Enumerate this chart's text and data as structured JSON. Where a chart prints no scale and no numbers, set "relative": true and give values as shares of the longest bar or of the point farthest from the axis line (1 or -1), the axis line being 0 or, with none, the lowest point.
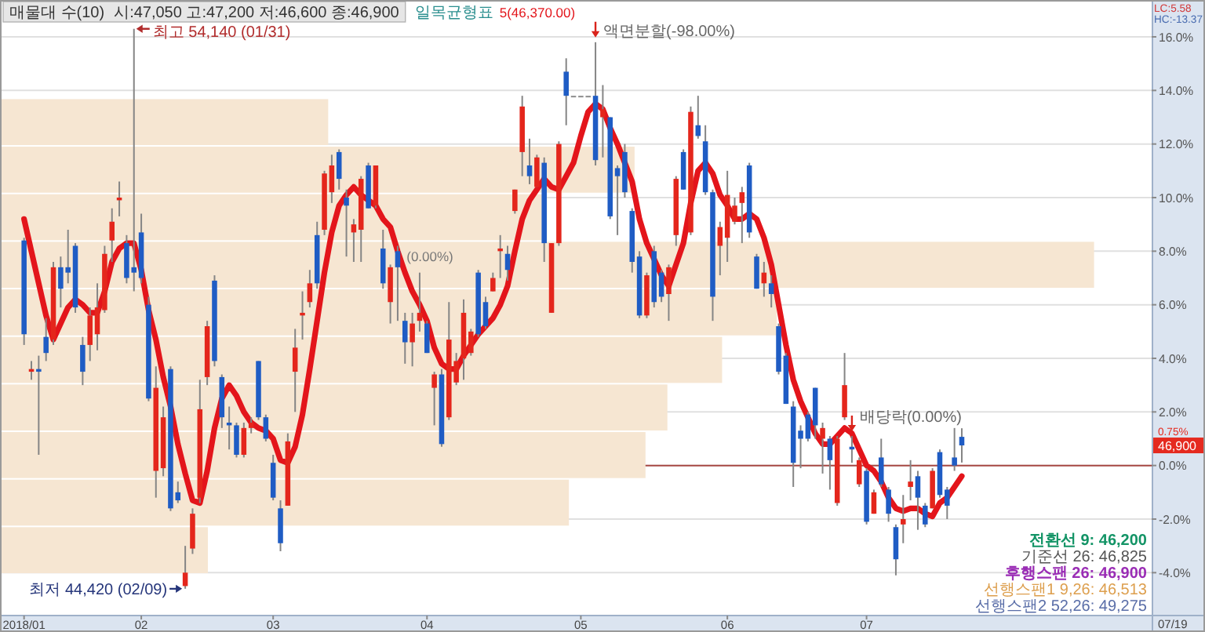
{
  "chart_data": [
    {
      "type": "candlestick",
      "title": "매물대 수(10)",
      "subtitle": "시:47,050 고:47,200 저:46,600 종:46,900",
      "categories": [
        "2018/01",
        null,
        null,
        null,
        null,
        null,
        null,
        null,
        null,
        null,
        null,
        null,
        null,
        null,
        null,
        null,
        "02",
        null,
        null,
        null,
        null,
        null,
        null,
        null,
        null,
        null,
        null,
        null,
        null,
        null,
        null,
        null,
        null,
        null,
        "03",
        null,
        null,
        null,
        null,
        null,
        null,
        null,
        null,
        null,
        null,
        null,
        null,
        null,
        null,
        null,
        null,
        null,
        null,
        null,
        null,
        "04",
        null,
        null,
        null,
        null,
        null,
        null,
        null,
        null,
        null,
        null,
        null,
        null,
        null,
        null,
        null,
        null,
        null,
        null,
        null,
        null,
        "05",
        null,
        null,
        null,
        null,
        null,
        null,
        null,
        null,
        null,
        null,
        null,
        null,
        null,
        null,
        null,
        null,
        null,
        null,
        null,
        "06",
        null,
        null,
        null,
        null,
        null,
        null,
        null,
        null,
        null,
        null,
        null,
        null,
        null,
        null,
        null,
        null,
        null,
        null,
        "07",
        null,
        null,
        null,
        null,
        null,
        null,
        null,
        null,
        null,
        null,
        null,
        null,
        null
      ],
      "ohlc": [
        [
          8.4,
          8.5,
          4.5,
          4.9
        ],
        [
          3.5,
          3.9,
          3.2,
          3.6
        ],
        [
          3.6,
          4.1,
          0.4,
          3.5
        ],
        [
          4.8,
          5.5,
          3.9,
          4.2
        ],
        [
          4.7,
          7.6,
          4.5,
          7.4
        ],
        [
          7.4,
          7.8,
          5.9,
          6.6
        ],
        [
          7.4,
          8.8,
          6.8,
          7.2
        ],
        [
          8.2,
          8.3,
          5.7,
          5.9
        ],
        [
          4.5,
          4.8,
          3.0,
          3.5
        ],
        [
          4.5,
          5.9,
          3.9,
          5.6
        ],
        [
          4.9,
          6.8,
          4.3,
          5.9
        ],
        [
          5.8,
          8.2,
          5.7,
          7.9
        ],
        [
          8.4,
          9.6,
          7.6,
          9.1
        ],
        [
          9.9,
          10.6,
          9.3,
          10.0
        ],
        [
          8.3,
          8.6,
          6.8,
          7.0
        ],
        [
          7.4,
          16.3,
          6.5,
          7.2
        ],
        [
          8.7,
          9.4,
          6.8,
          7.0
        ],
        [
          6.0,
          6.3,
          2.4,
          2.5
        ],
        [
          -0.2,
          3.7,
          -1.2,
          2.9
        ],
        [
          -0.1,
          2.2,
          -0.4,
          1.8
        ],
        [
          3.6,
          3.7,
          -1.7,
          -1.6
        ],
        [
          -1.0,
          -0.6,
          -1.4,
          -1.3
        ],
        [
          -4.5,
          -3.0,
          -4.6,
          -4.0
        ],
        [
          -3.1,
          -1.6,
          -3.3,
          -1.8
        ],
        [
          -1.2,
          3.2,
          -1.4,
          2.1
        ],
        [
          3.3,
          5.4,
          3.0,
          5.2
        ],
        [
          6.9,
          7.1,
          3.7,
          3.9
        ],
        [
          3.3,
          3.4,
          1.4,
          1.8
        ],
        [
          1.6,
          2.2,
          0.6,
          1.5
        ],
        [
          1.5,
          1.6,
          0.3,
          0.4
        ],
        [
          0.4,
          1.6,
          0.3,
          1.4
        ],
        [
          1.4,
          1.8,
          1.2,
          1.6
        ],
        [
          3.9,
          3.9,
          1.7,
          1.8
        ],
        [
          1.8,
          1.9,
          0.9,
          1.0
        ],
        [
          0.1,
          0.4,
          -1.3,
          -1.2
        ],
        [
          -1.6,
          -1.3,
          -3.2,
          -2.9
        ],
        [
          -1.5,
          1.2,
          -1.5,
          0.9
        ],
        [
          3.5,
          5.1,
          2.0,
          4.4
        ],
        [
          5.6,
          6.5,
          4.7,
          5.7
        ],
        [
          6.1,
          7.3,
          5.9,
          6.8
        ],
        [
          8.6,
          9.1,
          6.6,
          6.8
        ],
        [
          8.8,
          11.0,
          8.6,
          10.9
        ],
        [
          10.2,
          11.6,
          9.8,
          11.2
        ],
        [
          11.7,
          11.8,
          10.3,
          10.7
        ],
        [
          10.0,
          10.3,
          7.8,
          9.7
        ],
        [
          8.7,
          9.2,
          7.6,
          9.0
        ],
        [
          8.8,
          10.8,
          7.6,
          10.7
        ],
        [
          11.2,
          11.3,
          9.6,
          9.6
        ],
        [
          9.7,
          11.2,
          9.6,
          11.2
        ],
        [
          8.1,
          8.8,
          6.6,
          6.8
        ],
        [
          6.1,
          7.5,
          5.3,
          7.4
        ],
        [
          8.0,
          8.2,
          5.4,
          7.4
        ],
        [
          5.4,
          5.7,
          3.8,
          4.6
        ],
        [
          4.6,
          5.7,
          3.7,
          5.3
        ],
        [
          5.4,
          7.2,
          5.0,
          5.7
        ],
        [
          5.3,
          5.4,
          4.2,
          4.2
        ],
        [
          2.9,
          3.5,
          1.5,
          3.4
        ],
        [
          3.4,
          3.6,
          0.7,
          0.8
        ],
        [
          1.8,
          6.1,
          1.7,
          4.7
        ],
        [
          3.1,
          4.2,
          3.0,
          3.9
        ],
        [
          4.0,
          6.2,
          3.2,
          5.7
        ],
        [
          4.2,
          5.1,
          4.1,
          5.0
        ],
        [
          7.2,
          7.3,
          4.8,
          4.9
        ],
        [
          6.1,
          6.3,
          5.1,
          5.2
        ],
        [
          6.5,
          7.2,
          6.5,
          7.0
        ],
        [
          8.0,
          8.6,
          7.0,
          8.1
        ],
        [
          7.9,
          8.2,
          6.9,
          7.3
        ],
        [
          9.5,
          10.3,
          9.4,
          10.3
        ],
        [
          11.7,
          13.8,
          10.8,
          13.4
        ],
        [
          11.2,
          12.2,
          10.5,
          10.8
        ],
        [
          10.4,
          11.6,
          10.4,
          11.5
        ],
        [
          11.3,
          11.5,
          7.6,
          8.3
        ],
        [
          5.7,
          8.3,
          5.7,
          8.3
        ],
        [
          8.3,
          12.1,
          8.2,
          12.0
        ],
        [
          14.7,
          15.2,
          12.7,
          13.8
        ],
        [
          13.8,
          13.8,
          13.8,
          13.8
        ],
        [
          13.8,
          13.8,
          13.8,
          13.8
        ],
        [
          13.8,
          13.8,
          13.8,
          13.8
        ],
        [
          13.8,
          15.8,
          11.2,
          11.4
        ],
        [
          13.0,
          14.2,
          11.5,
          13.3
        ],
        [
          13.0,
          13.0,
          9.2,
          9.3
        ],
        [
          11.1,
          11.2,
          8.6,
          10.8
        ],
        [
          11.7,
          12.0,
          10.0,
          10.2
        ],
        [
          9.5,
          9.6,
          7.2,
          7.6
        ],
        [
          7.8,
          8.0,
          5.5,
          5.6
        ],
        [
          5.6,
          7.2,
          5.5,
          7.1
        ],
        [
          8.0,
          8.2,
          5.9,
          6.1
        ],
        [
          7.2,
          7.3,
          6.1,
          6.3
        ],
        [
          6.4,
          7.5,
          5.4,
          7.4
        ],
        [
          8.6,
          10.8,
          8.2,
          10.7
        ],
        [
          11.7,
          11.8,
          10.3,
          10.3
        ],
        [
          8.7,
          13.4,
          8.6,
          13.2
        ],
        [
          12.7,
          13.8,
          12.2,
          12.3
        ],
        [
          12.1,
          12.7,
          10.1,
          10.2
        ],
        [
          10.2,
          10.3,
          5.4,
          6.3
        ],
        [
          8.2,
          9.1,
          7.1,
          8.9
        ],
        [
          8.5,
          11.0,
          7.6,
          10.1
        ],
        [
          9.1,
          10.0,
          9.0,
          9.7
        ],
        [
          9.8,
          10.4,
          8.3,
          10.2
        ],
        [
          11.2,
          11.3,
          8.5,
          8.7
        ],
        [
          7.8,
          7.9,
          6.6,
          6.6
        ],
        [
          6.8,
          7.6,
          6.3,
          7.2
        ],
        [
          6.8,
          7.1,
          5.9,
          6.4
        ],
        [
          5.2,
          5.3,
          3.4,
          3.5
        ],
        [
          4.1,
          4.2,
          2.3,
          2.3
        ],
        [
          2.2,
          2.4,
          -0.8,
          0.1
        ],
        [
          1.3,
          1.5,
          -0.1,
          1.0
        ],
        [
          1.9,
          2.0,
          0.9,
          1.0
        ],
        [
          2.9,
          2.9,
          1.0,
          1.5
        ],
        [
          1.0,
          1.6,
          -0.3,
          1.4
        ],
        [
          1.0,
          1.1,
          -0.9,
          0.2
        ],
        [
          -1.4,
          1.1,
          -1.5,
          1.0
        ],
        [
          1.8,
          4.2,
          1.7,
          3.0
        ],
        [
          0.7,
          1.1,
          0.1,
          0.6
        ],
        [
          -0.7,
          0.3,
          -0.8,
          0.2
        ],
        [
          -0.2,
          -0.1,
          -2.2,
          -2.1
        ],
        [
          -1.8,
          -0.9,
          -1.8,
          -1.0
        ],
        [
          0.3,
          1.0,
          -0.8,
          -0.7
        ],
        [
          -0.9,
          -0.8,
          -2.1,
          -1.8
        ],
        [
          -2.3,
          -2.2,
          -4.1,
          -3.5
        ],
        [
          -2.2,
          -1.1,
          -2.9,
          -2.0
        ],
        [
          -0.8,
          0.2,
          -1.3,
          -0.6
        ],
        [
          -0.4,
          -0.2,
          -2.4,
          -1.2
        ],
        [
          -1.5,
          -1.4,
          -2.3,
          -2.2
        ],
        [
          -1.6,
          -0.1,
          -1.6,
          -0.2
        ],
        [
          0.5,
          0.6,
          -1.2,
          -1.1
        ],
        [
          -0.9,
          -0.8,
          -2.0,
          -1.5
        ],
        [
          0.3,
          1.4,
          -0.2,
          0.0
        ],
        [
          1.07,
          1.39,
          0.11,
          0.75
        ]
      ],
      "colors": [
        "#1f5cc4",
        "#e4261c",
        "#1f5cc4",
        "#1f5cc4",
        "#e4261c",
        "#1f5cc4",
        "#1f5cc4",
        "#1f5cc4",
        "#1f5cc4",
        "#e4261c",
        "#e4261c",
        "#e4261c",
        "#e4261c",
        "#e4261c",
        "#1f5cc4",
        "#1f5cc4",
        "#1f5cc4",
        "#1f5cc4",
        "#e4261c",
        "#e4261c",
        "#1f5cc4",
        "#1f5cc4",
        "#e4261c",
        "#e4261c",
        "#e4261c",
        "#e4261c",
        "#1f5cc4",
        "#1f5cc4",
        "#1f5cc4",
        "#1f5cc4",
        "#e4261c",
        "#e4261c",
        "#1f5cc4",
        "#1f5cc4",
        "#1f5cc4",
        "#1f5cc4",
        "#e4261c",
        "#e4261c",
        "#e4261c",
        "#e4261c",
        "#1f5cc4",
        "#e4261c",
        "#e4261c",
        "#1f5cc4",
        "#1f5cc4",
        "#e4261c",
        "#e4261c",
        "#1f5cc4",
        "#e4261c",
        "#1f5cc4",
        "#e4261c",
        "#1f5cc4",
        "#1f5cc4",
        "#e4261c",
        "#e4261c",
        "#1f5cc4",
        "#e4261c",
        "#1f5cc4",
        "#e4261c",
        "#e4261c",
        "#e4261c",
        "#e4261c",
        "#1f5cc4",
        "#1f5cc4",
        "#e4261c",
        "#e4261c",
        "#1f5cc4",
        "#e4261c",
        "#e4261c",
        "#1f5cc4",
        "#e4261c",
        "#1f5cc4",
        "#e4261c",
        "#e4261c",
        "#1f5cc4",
        "#8c8c8c",
        "#8c8c8c",
        "#8c8c8c",
        "#1f5cc4",
        "#e4261c",
        "#1f5cc4",
        "#1f5cc4",
        "#1f5cc4",
        "#1f5cc4",
        "#1f5cc4",
        "#e4261c",
        "#1f5cc4",
        "#1f5cc4",
        "#e4261c",
        "#e4261c",
        "#1f5cc4",
        "#e4261c",
        "#1f5cc4",
        "#1f5cc4",
        "#1f5cc4",
        "#e4261c",
        "#e4261c",
        "#e4261c",
        "#e4261c",
        "#1f5cc4",
        "#1f5cc4",
        "#e4261c",
        "#1f5cc4",
        "#1f5cc4",
        "#1f5cc4",
        "#1f5cc4",
        "#1f5cc4",
        "#1f5cc4",
        "#1f5cc4",
        "#e4261c",
        "#1f5cc4",
        "#e4261c",
        "#e4261c",
        "#1f5cc4",
        "#e4261c",
        "#1f5cc4",
        "#e4261c",
        "#1f5cc4",
        "#1f5cc4",
        "#1f5cc4",
        "#e4261c",
        "#e4261c",
        "#1f5cc4",
        "#1f5cc4",
        "#e4261c",
        "#1f5cc4",
        "#1f5cc4",
        "#1f5cc4",
        "#1f5cc4"
      ],
      "series": [
        {
          "type": "line",
          "name": "5(46,370.00)",
          "color": "#e3151b",
          "values": [
            9.2,
            8.0,
            6.8,
            5.6,
            4.7,
            5.3,
            5.9,
            6.2,
            6.0,
            5.7,
            5.7,
            6.5,
            7.6,
            8.1,
            8.3,
            8.3,
            7.3,
            5.8,
            4.7,
            3.3,
            2.2,
            0.8,
            -0.3,
            -1.3,
            -1.4,
            -0.2,
            1.4,
            2.5,
            3.0,
            2.6,
            2.0,
            1.6,
            1.4,
            1.3,
            1.0,
            0.2,
            0.1,
            0.7,
            1.9,
            3.6,
            5.4,
            7.2,
            8.7,
            9.7,
            10.1,
            10.4,
            10.1,
            9.9,
            9.7,
            9.2,
            8.9,
            8.0,
            7.2,
            6.5,
            6.0,
            5.4,
            4.4,
            3.8,
            3.6,
            3.6,
            4.1,
            4.5,
            4.9,
            5.2,
            5.5,
            6.0,
            6.7,
            8.0,
            9.2,
            9.9,
            10.3,
            10.7,
            10.4,
            10.3,
            10.8,
            11.3,
            12.3,
            13.2,
            13.5,
            13.3,
            12.6,
            12.0,
            11.3,
            10.6,
            9.2,
            8.3,
            7.7,
            7.1,
            6.7,
            7.5,
            8.3,
            9.8,
            11.0,
            11.3,
            10.9,
            10.1,
            9.7,
            9.2,
            9.2,
            9.4,
            9.2,
            8.5,
            7.5,
            6.0,
            4.5,
            3.2,
            2.4,
            1.8,
            1.2,
            0.8,
            0.8,
            1.1,
            1.4,
            1.2,
            0.6,
            0.0,
            -0.2,
            -0.6,
            -1.2,
            -1.6,
            -1.7,
            -1.6,
            -1.6,
            -1.8,
            -1.9,
            -1.4,
            -1.2,
            -0.8,
            -0.4
          ]
        }
      ],
      "ylim": [
        -5.6,
        17.2
      ],
      "yticks": [
        {
          "value": -4,
          "label": "-4.0%"
        },
        {
          "value": -2,
          "label": "-2.0%"
        },
        {
          "value": 0,
          "label": "0.0%"
        },
        {
          "value": 2,
          "label": "2.0%"
        },
        {
          "value": 4,
          "label": "4.0%"
        },
        {
          "value": 6,
          "label": "6.0%"
        },
        {
          "value": 8,
          "label": "8.0%"
        },
        {
          "value": 10,
          "label": "10.0%"
        },
        {
          "value": 12,
          "label": "12.0%"
        },
        {
          "value": 14,
          "label": "14.0%"
        },
        {
          "value": 16,
          "label": "16.0%"
        }
      ],
      "grid": "y",
      "legend": "top",
      "ref_lines": [
        {
          "axis": "y",
          "value": 0,
          "color": "#a84a44"
        }
      ],
      "annotations": [
        "일목균형표",
        "최고 54,140 (01/31)",
        "최저 44,420 (02/09)",
        "액면분할(-98.00%)",
        "(0.00%)",
        "배당락(0.00%)",
        "전환선 9: 46,200",
        "기준선 26: 46,825",
        "후행스팬 26: 46,900",
        "선행스팬1 9,26: 46,513",
        "선행스팬2 52,26: 49,275",
        "LC:5.58",
        "HC:-13.37",
        "46,900",
        "0.75%",
        "07/19"
      ]
    },
    {
      "type": "bar",
      "orientation": "horizontal",
      "relative": true,
      "categories": [
        null,
        null,
        null,
        null,
        null,
        null,
        null,
        null,
        null,
        null
      ],
      "values": [
        0.3,
        0.58,
        0.5,
        1,
        0.71,
        0.66,
        0.61,
        0.59,
        0.52,
        0.19
      ],
      "color": "#f6e6d2"
    }
  ]
}
